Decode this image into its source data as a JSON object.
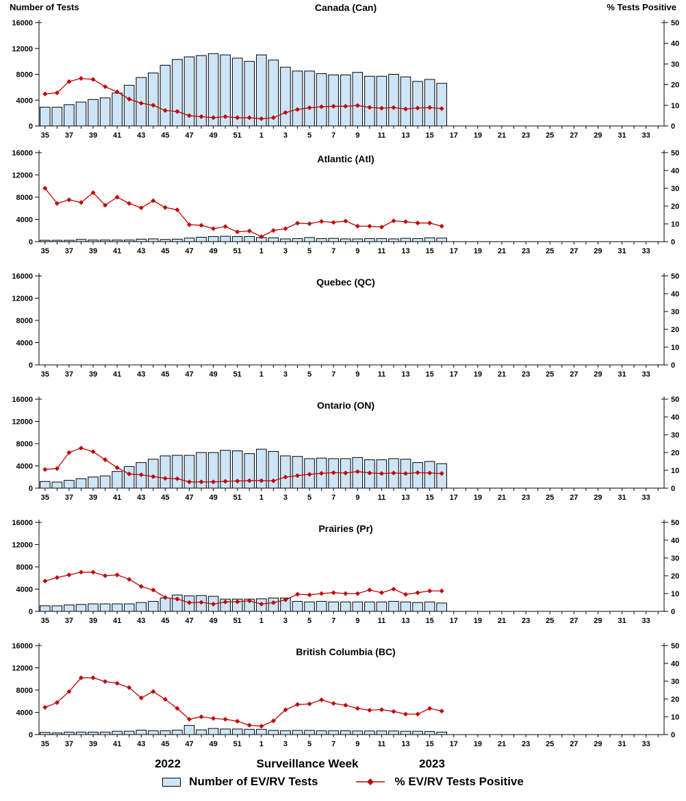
{
  "page": {
    "left_axis_title": "Number of Tests",
    "right_axis_title": "% Tests Positive",
    "x_axis_title": "Surveillance Week",
    "year_left": "2022",
    "year_right": "2023"
  },
  "legend": {
    "bar_label": "Number of EV/RV Tests",
    "line_label": "% EV/RV Tests Positive"
  },
  "colors": {
    "bar_fill": "#CDE5F7",
    "bar_border": "#000000",
    "line": "#C00000",
    "axis": "#000000"
  },
  "x_axis": {
    "weeks": [
      35,
      36,
      37,
      38,
      39,
      40,
      41,
      42,
      43,
      44,
      45,
      46,
      47,
      48,
      49,
      50,
      51,
      52,
      1,
      2,
      3,
      4,
      5,
      6,
      7,
      8,
      9,
      10,
      11,
      12,
      13,
      14,
      15,
      16,
      17,
      18,
      19,
      20,
      21,
      22,
      23,
      24,
      25,
      26,
      27,
      28,
      29,
      30,
      31,
      32,
      33,
      34
    ],
    "labeled_every": 2
  },
  "chart_data": [
    {
      "type": "bar",
      "title": "Canada (Can)",
      "categories": [
        35,
        36,
        37,
        38,
        39,
        40,
        41,
        42,
        43,
        44,
        45,
        46,
        47,
        48,
        49,
        50,
        51,
        52,
        1,
        2,
        3,
        4,
        5,
        6,
        7,
        8,
        9,
        10,
        11,
        12,
        13,
        14,
        15,
        16
      ],
      "series": [
        {
          "name": "Number of EV/RV Tests",
          "type": "bar",
          "axis": "left",
          "values": [
            2900,
            2900,
            3300,
            3700,
            4100,
            4350,
            5100,
            6300,
            7500,
            8200,
            9400,
            10300,
            10700,
            10900,
            11200,
            11000,
            10500,
            10000,
            11000,
            10200,
            9100,
            8500,
            8500,
            8100,
            7900,
            7900,
            8300,
            7700,
            7700,
            8000,
            7600,
            6900,
            7200,
            6600
          ]
        },
        {
          "name": "% EV/RV Tests Positive",
          "type": "line",
          "axis": "right",
          "values": [
            15.5,
            16,
            21.5,
            23,
            22.5,
            19,
            16.5,
            13,
            11,
            10,
            7.5,
            7,
            5,
            4.5,
            4,
            4.5,
            4,
            4,
            3.5,
            4,
            6.5,
            8,
            8.8,
            9.3,
            9.5,
            9.5,
            9.9,
            9,
            8.6,
            8.9,
            8.2,
            8.7,
            8.9,
            8.4
          ]
        }
      ],
      "left_ylim": [
        0,
        16000
      ],
      "right_ylim": [
        0,
        50
      ],
      "left_yticks": [
        0,
        4000,
        8000,
        12000,
        16000
      ],
      "right_yticks": [
        0,
        10,
        20,
        30,
        40,
        50
      ]
    },
    {
      "type": "bar",
      "title": "Atlantic (Atl)",
      "categories": [
        35,
        36,
        37,
        38,
        39,
        40,
        41,
        42,
        43,
        44,
        45,
        46,
        47,
        48,
        49,
        50,
        51,
        52,
        1,
        2,
        3,
        4,
        5,
        6,
        7,
        8,
        9,
        10,
        11,
        12,
        13,
        14,
        15,
        16
      ],
      "series": [
        {
          "name": "Number of EV/RV Tests",
          "type": "bar",
          "axis": "left",
          "values": [
            250,
            250,
            250,
            400,
            300,
            300,
            300,
            300,
            450,
            500,
            400,
            450,
            650,
            800,
            930,
            970,
            930,
            930,
            730,
            690,
            500,
            550,
            750,
            550,
            600,
            500,
            500,
            550,
            550,
            500,
            600,
            550,
            700,
            650
          ]
        },
        {
          "name": "% EV/RV Tests Positive",
          "type": "line",
          "axis": "right",
          "values": [
            30,
            21.5,
            23.5,
            22,
            27.5,
            20.5,
            25,
            21.5,
            19,
            23,
            19.2,
            17.9,
            9.5,
            9.2,
            7.3,
            8.5,
            5.5,
            6,
            2.8,
            6.3,
            7.3,
            10.4,
            10.1,
            11.4,
            10.8,
            11.6,
            8.7,
            8.7,
            8.2,
            11.7,
            11.2,
            10.5,
            10.5,
            8.7
          ]
        }
      ],
      "left_ylim": [
        0,
        16000
      ],
      "right_ylim": [
        0,
        50
      ],
      "left_yticks": [
        0,
        4000,
        8000,
        12000,
        16000
      ],
      "right_yticks": [
        0,
        10,
        20,
        30,
        40,
        50
      ]
    },
    {
      "type": "bar",
      "title": "Quebec (QC)",
      "categories": [],
      "series": [
        {
          "name": "Number of EV/RV Tests",
          "type": "bar",
          "axis": "left",
          "values": []
        },
        {
          "name": "% EV/RV Tests Positive",
          "type": "line",
          "axis": "right",
          "values": []
        }
      ],
      "left_ylim": [
        0,
        16000
      ],
      "right_ylim": [
        0,
        50
      ],
      "left_yticks": [
        0,
        4000,
        8000,
        12000,
        16000
      ],
      "right_yticks": [
        0,
        10,
        20,
        30,
        40,
        50
      ]
    },
    {
      "type": "bar",
      "title": "Ontario (ON)",
      "categories": [
        35,
        36,
        37,
        38,
        39,
        40,
        41,
        42,
        43,
        44,
        45,
        46,
        47,
        48,
        49,
        50,
        51,
        52,
        1,
        2,
        3,
        4,
        5,
        6,
        7,
        8,
        9,
        10,
        11,
        12,
        13,
        14,
        15,
        16
      ],
      "series": [
        {
          "name": "Number of EV/RV Tests",
          "type": "bar",
          "axis": "left",
          "values": [
            1200,
            1100,
            1400,
            1700,
            2000,
            2200,
            3000,
            3900,
            4600,
            5200,
            5800,
            5900,
            5900,
            6400,
            6400,
            6800,
            6700,
            6200,
            7000,
            6600,
            5800,
            5700,
            5300,
            5400,
            5300,
            5300,
            5500,
            5100,
            5100,
            5300,
            5200,
            4600,
            4800,
            4400
          ]
        },
        {
          "name": "% EV/RV Tests Positive",
          "type": "line",
          "axis": "right",
          "values": [
            10.5,
            11,
            20,
            22.5,
            20.5,
            16,
            11.5,
            8,
            7.5,
            6.5,
            5.5,
            5.3,
            3.5,
            3.5,
            3.5,
            3.8,
            4,
            4.2,
            4.2,
            4.1,
            6.2,
            7,
            7.8,
            8.3,
            8.7,
            8.5,
            9.3,
            8.5,
            8.2,
            8.5,
            8.2,
            8.7,
            8.5,
            8.2
          ]
        }
      ],
      "left_ylim": [
        0,
        16000
      ],
      "right_ylim": [
        0,
        50
      ],
      "left_yticks": [
        0,
        4000,
        8000,
        12000,
        16000
      ],
      "right_yticks": [
        0,
        10,
        20,
        30,
        40,
        50
      ]
    },
    {
      "type": "bar",
      "title": "Prairies (Pr)",
      "categories": [
        35,
        36,
        37,
        38,
        39,
        40,
        41,
        42,
        43,
        44,
        45,
        46,
        47,
        48,
        49,
        50,
        51,
        52,
        1,
        2,
        3,
        4,
        5,
        6,
        7,
        8,
        9,
        10,
        11,
        12,
        13,
        14,
        15,
        16
      ],
      "series": [
        {
          "name": "Number of EV/RV Tests",
          "type": "bar",
          "axis": "left",
          "values": [
            1000,
            1000,
            1150,
            1250,
            1350,
            1350,
            1350,
            1350,
            1600,
            1800,
            2400,
            2950,
            2800,
            2850,
            2700,
            2200,
            2200,
            2200,
            2250,
            2400,
            2400,
            1800,
            1700,
            1800,
            1700,
            1700,
            1700,
            1700,
            1700,
            1800,
            1700,
            1600,
            1700,
            1500
          ]
        },
        {
          "name": "% EV/RV Tests Positive",
          "type": "line",
          "axis": "right",
          "values": [
            17,
            19,
            20.5,
            22,
            22,
            20,
            20.5,
            18,
            14,
            12,
            7.8,
            6.9,
            4.9,
            5.1,
            4.1,
            5.3,
            5.4,
            5.9,
            4.1,
            4.9,
            6.5,
            9.6,
            9.3,
            10,
            10.5,
            10,
            10,
            12,
            10.5,
            12.5,
            9.5,
            10.5,
            11.5,
            11.5
          ]
        }
      ],
      "left_ylim": [
        0,
        16000
      ],
      "right_ylim": [
        0,
        50
      ],
      "left_yticks": [
        0,
        4000,
        8000,
        12000,
        16000
      ],
      "right_yticks": [
        0,
        10,
        20,
        30,
        40,
        50
      ]
    },
    {
      "type": "bar",
      "title": "British Columbia (BC)",
      "categories": [
        35,
        36,
        37,
        38,
        39,
        40,
        41,
        42,
        43,
        44,
        45,
        46,
        47,
        48,
        49,
        50,
        51,
        52,
        1,
        2,
        3,
        4,
        5,
        6,
        7,
        8,
        9,
        10,
        11,
        12,
        13,
        14,
        15,
        16
      ],
      "series": [
        {
          "name": "Number of EV/RV Tests",
          "type": "bar",
          "axis": "left",
          "values": [
            400,
            300,
            450,
            450,
            450,
            450,
            600,
            600,
            800,
            700,
            700,
            800,
            1650,
            850,
            1100,
            1000,
            1000,
            950,
            950,
            750,
            700,
            750,
            750,
            700,
            700,
            700,
            650,
            650,
            650,
            650,
            600,
            600,
            550,
            450
          ]
        },
        {
          "name": "% EV/RV Tests Positive",
          "type": "line",
          "axis": "right",
          "values": [
            15.3,
            18,
            24.2,
            31.9,
            31.9,
            29.8,
            28.8,
            26.4,
            20.6,
            24.2,
            19.8,
            14.7,
            8.6,
            10,
            9.1,
            8.6,
            7.5,
            5.3,
            4.7,
            7.7,
            13.9,
            16.9,
            17.2,
            19.5,
            17.5,
            16.5,
            14.7,
            13.7,
            14,
            13,
            11.5,
            11.5,
            14.7,
            13.2
          ]
        }
      ],
      "left_ylim": [
        0,
        16000
      ],
      "right_ylim": [
        0,
        50
      ],
      "left_yticks": [
        0,
        4000,
        8000,
        12000,
        16000
      ],
      "right_yticks": [
        0,
        10,
        20,
        30,
        40,
        50
      ]
    }
  ]
}
